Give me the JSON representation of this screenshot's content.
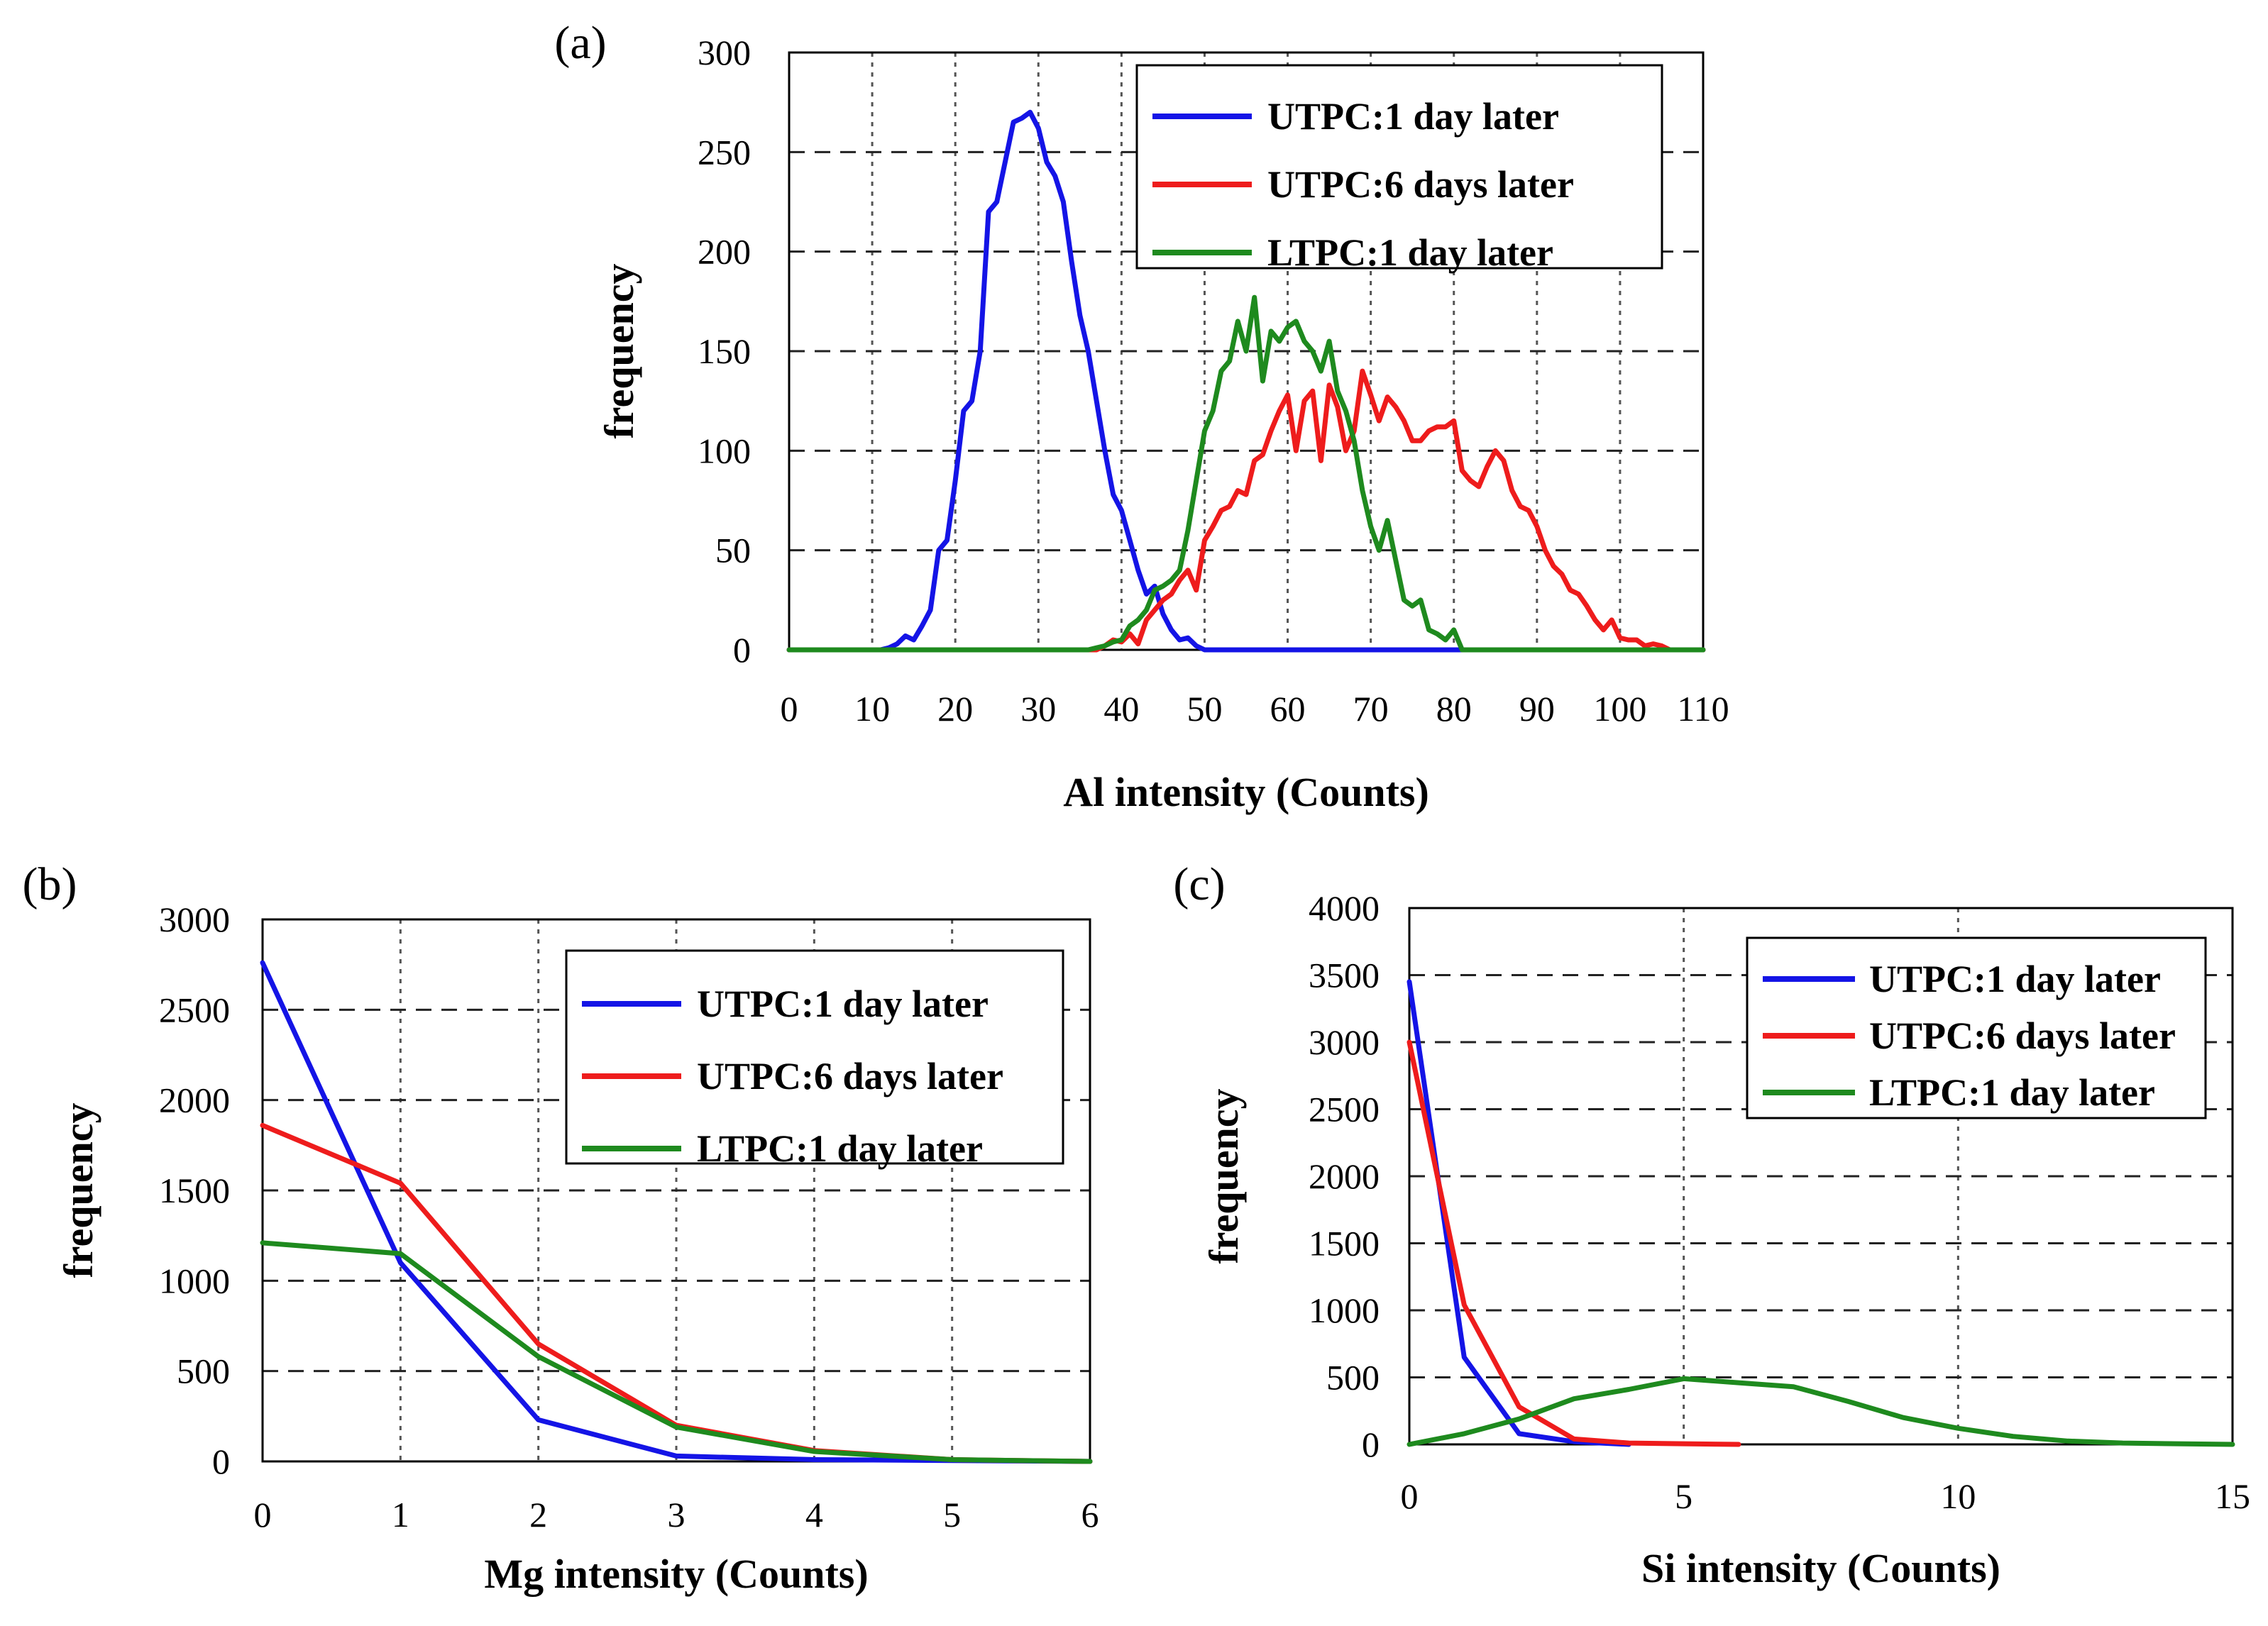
{
  "figure": {
    "panels": [
      "(a)",
      "(b)",
      "(c)"
    ],
    "colors": {
      "UTPC:1 day later": "#1414e6",
      "UTPC:6 days later": "#ee1c1c",
      "LTPC:1 day later": "#1e8a1e"
    }
  },
  "chart_data": [
    {
      "type": "line",
      "panel": "(a)",
      "title": "",
      "xlabel": "Al intensity (Counts)",
      "ylabel": "frequency",
      "xlim": [
        0,
        110
      ],
      "ylim": [
        0,
        300
      ],
      "xticks": [
        0,
        10,
        20,
        30,
        40,
        50,
        60,
        70,
        80,
        90,
        100,
        110
      ],
      "yticks": [
        0,
        50,
        100,
        150,
        200,
        250,
        300
      ],
      "grid": true,
      "legend": "top-right",
      "series": [
        {
          "name": "UTPC:1 day later",
          "color": "#1414e6",
          "x": [
            0,
            10,
            11,
            12,
            13,
            14,
            15,
            16,
            17,
            18,
            19,
            20,
            21,
            22,
            23,
            24,
            25,
            26,
            27,
            28,
            29,
            30,
            31,
            32,
            33,
            34,
            35,
            36,
            37,
            38,
            39,
            40,
            41,
            42,
            43,
            44,
            45,
            46,
            47,
            48,
            49,
            50,
            110
          ],
          "y": [
            0,
            0,
            0,
            1,
            3,
            7,
            5,
            12,
            20,
            50,
            55,
            85,
            120,
            125,
            150,
            220,
            225,
            245,
            265,
            267,
            270,
            262,
            245,
            238,
            225,
            195,
            168,
            150,
            125,
            100,
            78,
            70,
            55,
            40,
            28,
            32,
            18,
            10,
            5,
            6,
            2,
            0,
            0
          ]
        },
        {
          "name": "UTPC:6 days later",
          "color": "#ee1c1c",
          "x": [
            0,
            37,
            38,
            39,
            40,
            41,
            42,
            43,
            44,
            45,
            46,
            47,
            48,
            49,
            50,
            51,
            52,
            53,
            54,
            55,
            56,
            57,
            58,
            59,
            60,
            61,
            62,
            63,
            64,
            65,
            66,
            67,
            68,
            69,
            70,
            71,
            72,
            73,
            74,
            75,
            76,
            77,
            78,
            79,
            80,
            81,
            82,
            83,
            84,
            85,
            86,
            87,
            88,
            89,
            90,
            91,
            92,
            93,
            94,
            95,
            96,
            97,
            98,
            99,
            100,
            101,
            102,
            103,
            104,
            105,
            106,
            107,
            110
          ],
          "y": [
            0,
            0,
            2,
            5,
            4,
            8,
            3,
            15,
            20,
            25,
            28,
            35,
            40,
            30,
            55,
            62,
            70,
            72,
            80,
            78,
            95,
            98,
            110,
            120,
            128,
            100,
            125,
            130,
            95,
            133,
            122,
            100,
            110,
            140,
            128,
            115,
            127,
            122,
            115,
            105,
            105,
            110,
            112,
            112,
            115,
            90,
            85,
            82,
            92,
            100,
            95,
            80,
            72,
            70,
            62,
            50,
            42,
            38,
            30,
            28,
            22,
            15,
            10,
            15,
            6,
            5,
            5,
            2,
            3,
            2,
            0,
            0,
            0
          ]
        },
        {
          "name": "LTPC:1 day later",
          "color": "#1e8a1e",
          "x": [
            0,
            36,
            37,
            38,
            39,
            40,
            41,
            42,
            43,
            44,
            45,
            46,
            47,
            48,
            49,
            50,
            51,
            52,
            53,
            54,
            55,
            56,
            57,
            58,
            59,
            60,
            61,
            62,
            63,
            64,
            65,
            66,
            67,
            68,
            69,
            70,
            71,
            72,
            73,
            74,
            75,
            76,
            77,
            78,
            79,
            80,
            81,
            82,
            83,
            110
          ],
          "y": [
            0,
            0,
            1,
            2,
            4,
            5,
            12,
            15,
            20,
            30,
            32,
            35,
            40,
            60,
            85,
            110,
            120,
            140,
            145,
            165,
            150,
            177,
            135,
            160,
            155,
            162,
            165,
            155,
            150,
            140,
            155,
            130,
            120,
            105,
            80,
            62,
            50,
            65,
            45,
            25,
            22,
            25,
            10,
            8,
            5,
            10,
            0,
            0,
            0,
            0
          ]
        }
      ]
    },
    {
      "type": "line",
      "panel": "(b)",
      "title": "",
      "xlabel": "Mg intensity (Counts)",
      "ylabel": "frequency",
      "xlim": [
        0,
        6
      ],
      "ylim": [
        0,
        3000
      ],
      "xticks": [
        0,
        1,
        2,
        3,
        4,
        5,
        6
      ],
      "yticks": [
        0,
        500,
        1000,
        1500,
        2000,
        2500,
        3000
      ],
      "grid": true,
      "legend": "top-right",
      "series": [
        {
          "name": "UTPC:1 day later",
          "color": "#1414e6",
          "x": [
            0,
            1,
            2,
            3,
            4,
            5,
            6
          ],
          "y": [
            2760,
            1100,
            230,
            30,
            10,
            5,
            0
          ]
        },
        {
          "name": "UTPC:6 days later",
          "color": "#ee1c1c",
          "x": [
            0,
            1,
            2,
            3,
            4,
            5,
            6
          ],
          "y": [
            1860,
            1540,
            650,
            200,
            60,
            10,
            0
          ]
        },
        {
          "name": "LTPC:1 day later",
          "color": "#1e8a1e",
          "x": [
            0,
            1,
            2,
            3,
            4,
            5,
            6
          ],
          "y": [
            1210,
            1150,
            580,
            190,
            55,
            10,
            0
          ]
        }
      ]
    },
    {
      "type": "line",
      "panel": "(c)",
      "title": "",
      "xlabel": "Si intensity (Counts)",
      "ylabel": "frequency",
      "xlim": [
        0,
        15
      ],
      "ylim": [
        0,
        4000
      ],
      "xticks": [
        0,
        5,
        10,
        15
      ],
      "yticks": [
        0,
        500,
        1000,
        1500,
        2000,
        2500,
        3000,
        3500,
        4000
      ],
      "grid": true,
      "legend": "top-right",
      "series": [
        {
          "name": "UTPC:1 day later",
          "color": "#1414e6",
          "x": [
            0,
            1,
            2,
            3,
            4
          ],
          "y": [
            3450,
            650,
            80,
            20,
            0
          ]
        },
        {
          "name": "UTPC:6 days later",
          "color": "#ee1c1c",
          "x": [
            0,
            1,
            2,
            3,
            4,
            5,
            6
          ],
          "y": [
            3000,
            1040,
            280,
            40,
            10,
            5,
            0
          ]
        },
        {
          "name": "LTPC:1 day later",
          "color": "#1e8a1e",
          "x": [
            0,
            1,
            2,
            3,
            4,
            5,
            6,
            7,
            8,
            9,
            10,
            11,
            12,
            13,
            14,
            15
          ],
          "y": [
            0,
            80,
            190,
            340,
            410,
            490,
            460,
            430,
            320,
            200,
            120,
            60,
            25,
            10,
            5,
            0
          ]
        }
      ]
    }
  ]
}
